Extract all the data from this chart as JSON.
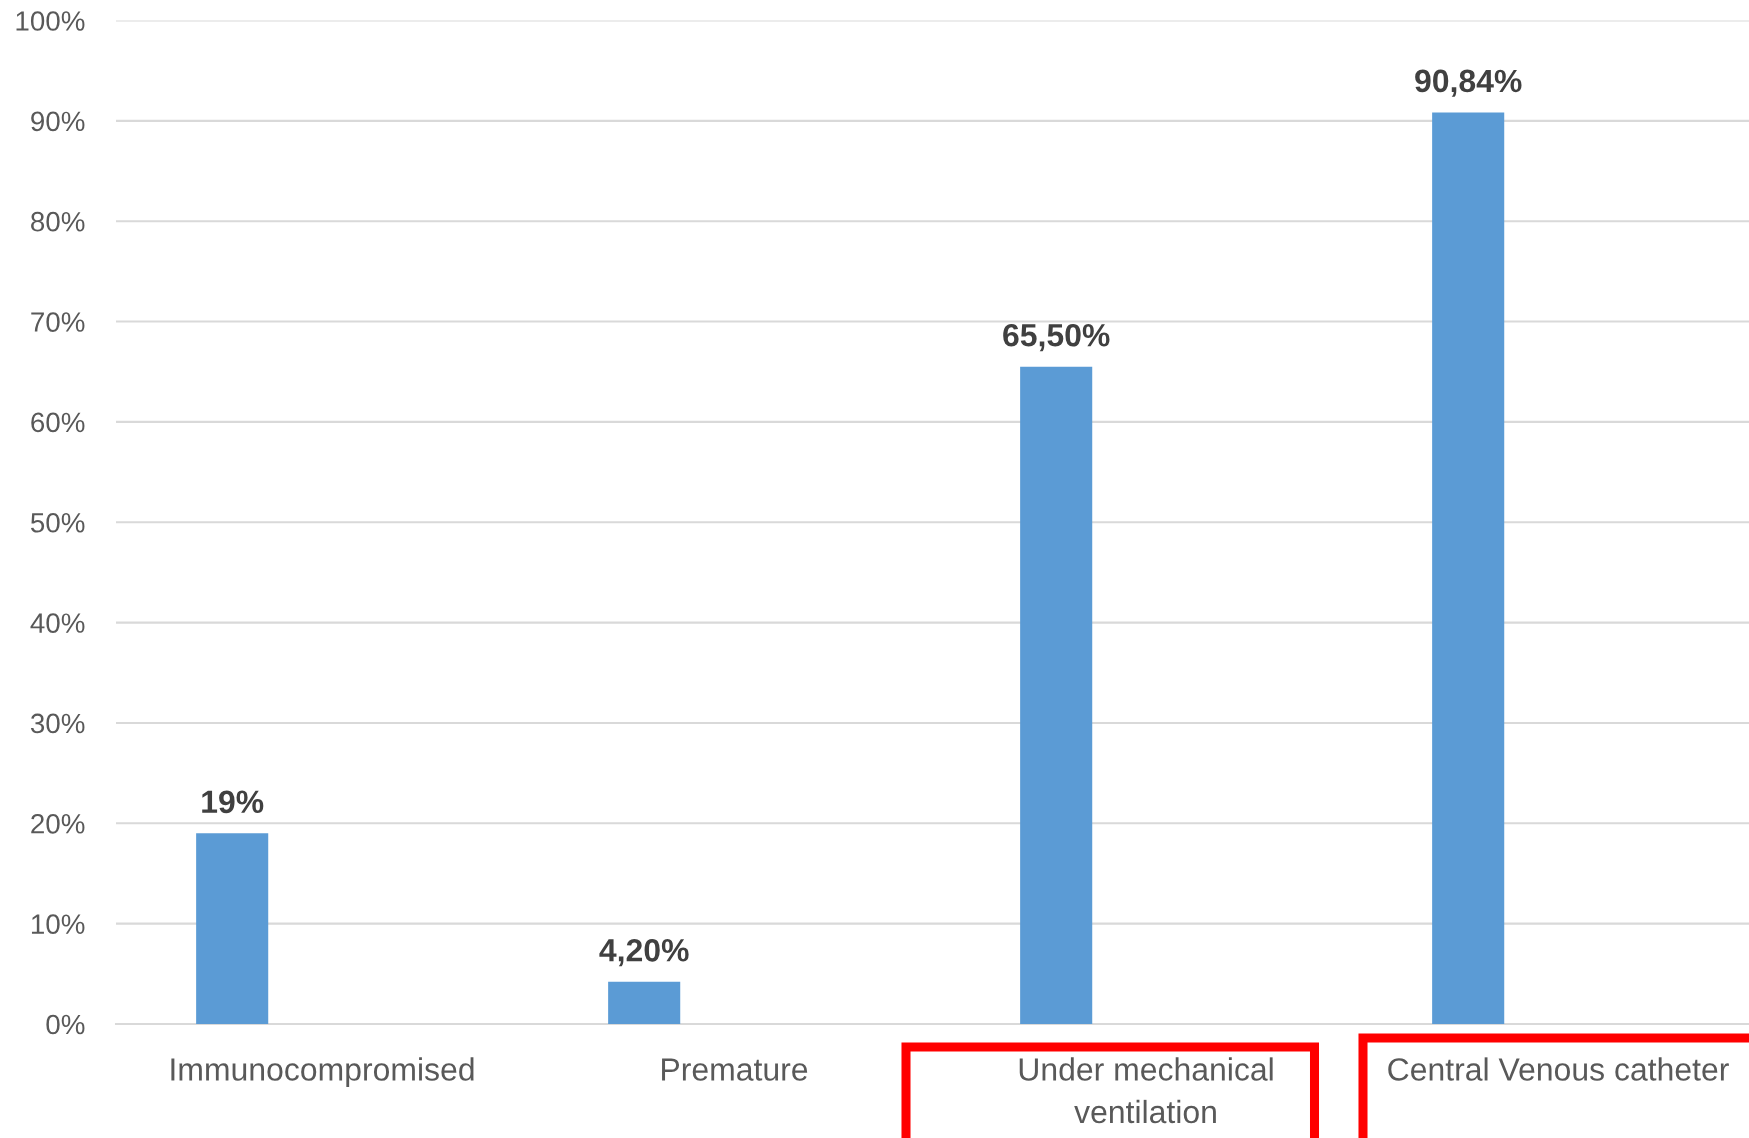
{
  "chart_data": {
    "type": "bar",
    "categories": [
      "Immunocompromised",
      "Premature",
      "Under mechanical\nventilation",
      "Central Venous catheter"
    ],
    "values": [
      19,
      4.2,
      65.5,
      90.84
    ],
    "value_labels": [
      "19%",
      "4,20%",
      "65,50%",
      "90,84%"
    ],
    "color": "#5b9bd5",
    "ylim": [
      0,
      100
    ],
    "yticks": [
      {
        "value": 0,
        "label": "0%"
      },
      {
        "value": 10,
        "label": "10%"
      },
      {
        "value": 20,
        "label": "20%"
      },
      {
        "value": 30,
        "label": "30%"
      },
      {
        "value": 40,
        "label": "40%"
      },
      {
        "value": 50,
        "label": "50%"
      },
      {
        "value": 60,
        "label": "60%"
      },
      {
        "value": 70,
        "label": "70%"
      },
      {
        "value": 80,
        "label": "80%"
      },
      {
        "value": 90,
        "label": "90%"
      },
      {
        "value": 100,
        "label": "100%"
      }
    ],
    "grid": "y"
  }
}
